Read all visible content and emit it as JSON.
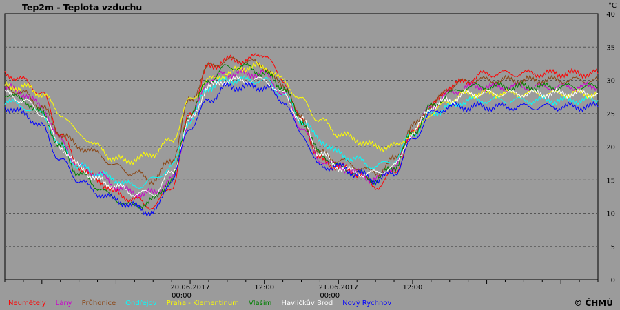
{
  "header": {
    "title": "Tep2m - Teplota vzduchu",
    "unit": "°C"
  },
  "copyright": "© ČHMÚ",
  "chart_data": {
    "type": "line",
    "title": "Tep2m - Teplota vzduchu",
    "ylabel": "°C",
    "ylim": [
      0,
      40
    ],
    "yticks": [
      0,
      5,
      10,
      15,
      20,
      25,
      30,
      35,
      40
    ],
    "xlim": [
      -30,
      66
    ],
    "xticks": [
      {
        "hour": 0,
        "label": [
          "20.06.2017",
          "00:00"
        ]
      },
      {
        "hour": 12,
        "label": [
          "12:00"
        ]
      },
      {
        "hour": 24,
        "label": [
          "21.06.2017",
          "00:00"
        ]
      },
      {
        "hour": 36,
        "label": [
          "12:00"
        ]
      }
    ],
    "grid": true,
    "legend_position": "bottom",
    "x_unit": "hours since 20.06.2017 00:00",
    "series": [
      {
        "name": "Neumětely",
        "color": "#ff0000",
        "x": [
          -30,
          -27,
          -24,
          -21,
          -18,
          -15,
          -12,
          -9,
          -6,
          -3,
          0,
          3,
          6,
          9,
          12,
          15,
          18,
          21,
          24,
          27,
          30,
          33,
          36,
          39,
          42,
          45,
          48,
          51,
          54,
          57,
          60,
          63,
          66
        ],
        "y": [
          31,
          30,
          28,
          22,
          17,
          15,
          13,
          12,
          11,
          14,
          25,
          32,
          33,
          33,
          34,
          30,
          24,
          18,
          17,
          16,
          14,
          16,
          22,
          26,
          29,
          30,
          31,
          31,
          31,
          31,
          31,
          31,
          31
        ]
      },
      {
        "name": "Lány",
        "color": "#cc00cc",
        "x": [
          -30,
          -27,
          -24,
          -21,
          -18,
          -15,
          -12,
          -9,
          -6,
          -3,
          0,
          3,
          6,
          9,
          12,
          15,
          18,
          21,
          24,
          27,
          30,
          33,
          36,
          39,
          42,
          45,
          48,
          51,
          54,
          57,
          60,
          63,
          66
        ],
        "y": [
          29,
          28,
          26,
          21,
          17,
          16,
          14,
          13,
          13,
          15,
          24,
          30,
          31,
          31,
          31,
          28,
          23,
          18,
          17,
          16,
          15,
          17,
          22,
          26,
          28,
          29,
          29,
          29,
          29,
          29,
          29,
          29,
          29
        ]
      },
      {
        "name": "Průhonice",
        "color": "#8b4513",
        "x": [
          -30,
          -27,
          -24,
          -21,
          -18,
          -15,
          -12,
          -9,
          -6,
          -3,
          0,
          3,
          6,
          9,
          12,
          15,
          18,
          21,
          24,
          27,
          30,
          33,
          36,
          39,
          42,
          45,
          48,
          51,
          54,
          57,
          60,
          63,
          66
        ],
        "y": [
          29,
          28,
          26,
          22,
          20,
          19,
          17,
          16,
          15,
          18,
          27,
          32,
          33,
          33,
          32,
          29,
          24,
          19,
          18,
          17,
          16,
          18,
          23,
          26,
          29,
          30,
          30,
          30,
          30,
          30,
          30,
          30,
          30
        ]
      },
      {
        "name": "Ondřejov",
        "color": "#00ffff",
        "x": [
          -30,
          -27,
          -24,
          -21,
          -18,
          -15,
          -12,
          -9,
          -6,
          -3,
          0,
          3,
          6,
          9,
          12,
          15,
          18,
          21,
          24,
          27,
          30,
          33,
          36,
          39,
          42,
          45,
          48,
          51,
          54,
          57,
          60,
          63,
          66
        ],
        "y": [
          27,
          26,
          25,
          20,
          17,
          16,
          15,
          14,
          15,
          17,
          24,
          29,
          30,
          30,
          30,
          28,
          24,
          21,
          19,
          18,
          17,
          18,
          22,
          25,
          26,
          27,
          27,
          27,
          27,
          27,
          27,
          27,
          27
        ]
      },
      {
        "name": "Praha - Klementinum",
        "color": "#ffff00",
        "x": [
          -30,
          -27,
          -24,
          -21,
          -18,
          -15,
          -12,
          -9,
          -6,
          -3,
          0,
          3,
          6,
          9,
          12,
          15,
          18,
          21,
          24,
          27,
          30,
          33,
          36,
          39,
          42,
          45,
          48,
          51,
          54,
          57,
          60,
          63,
          66
        ],
        "y": [
          29,
          29,
          28,
          25,
          22,
          20,
          18,
          18,
          19,
          21,
          27,
          30,
          31,
          32,
          32,
          30,
          27,
          24,
          22,
          21,
          20,
          20,
          22,
          25,
          27,
          28,
          28,
          28,
          28,
          28,
          28,
          28,
          28
        ]
      },
      {
        "name": "Vlašim",
        "color": "#008000",
        "x": [
          -30,
          -27,
          -24,
          -21,
          -18,
          -15,
          -12,
          -9,
          -6,
          -3,
          0,
          3,
          6,
          9,
          12,
          15,
          18,
          21,
          24,
          27,
          30,
          33,
          36,
          39,
          42,
          45,
          48,
          51,
          54,
          57,
          60,
          63,
          66
        ],
        "y": [
          28,
          27,
          25,
          20,
          16,
          14,
          12,
          11,
          12,
          15,
          25,
          30,
          32,
          32,
          31,
          29,
          24,
          19,
          17,
          16,
          15,
          17,
          22,
          26,
          28,
          29,
          29,
          29,
          29,
          29,
          29,
          29,
          29
        ]
      },
      {
        "name": "Havlíčkův Brod",
        "color": "#ffffff",
        "x": [
          -30,
          -27,
          -24,
          -21,
          -18,
          -15,
          -12,
          -9,
          -6,
          -3,
          0,
          3,
          6,
          9,
          12,
          15,
          18,
          21,
          24,
          27,
          30,
          33,
          36,
          39,
          42,
          45,
          48,
          51,
          54,
          57,
          60,
          63,
          66
        ],
        "y": [
          28,
          27,
          25,
          20,
          17,
          15,
          14,
          13,
          13,
          16,
          24,
          29,
          30,
          30,
          30,
          28,
          24,
          19,
          17,
          16,
          16,
          17,
          22,
          26,
          27,
          28,
          28,
          28,
          28,
          28,
          28,
          28,
          28
        ]
      },
      {
        "name": "Nový Rychnov",
        "color": "#0000ff",
        "x": [
          -30,
          -27,
          -24,
          -21,
          -18,
          -15,
          -12,
          -9,
          -6,
          -3,
          0,
          3,
          6,
          9,
          12,
          15,
          18,
          21,
          24,
          27,
          30,
          33,
          36,
          39,
          42,
          45,
          48,
          51,
          54,
          57,
          60,
          63,
          66
        ],
        "y": [
          26,
          25,
          23,
          18,
          15,
          13,
          12,
          11,
          10,
          15,
          23,
          27,
          29,
          29,
          29,
          27,
          22,
          17,
          17,
          16,
          15,
          16,
          21,
          25,
          26,
          26,
          26,
          26,
          26,
          26,
          26,
          26,
          26
        ]
      }
    ]
  }
}
